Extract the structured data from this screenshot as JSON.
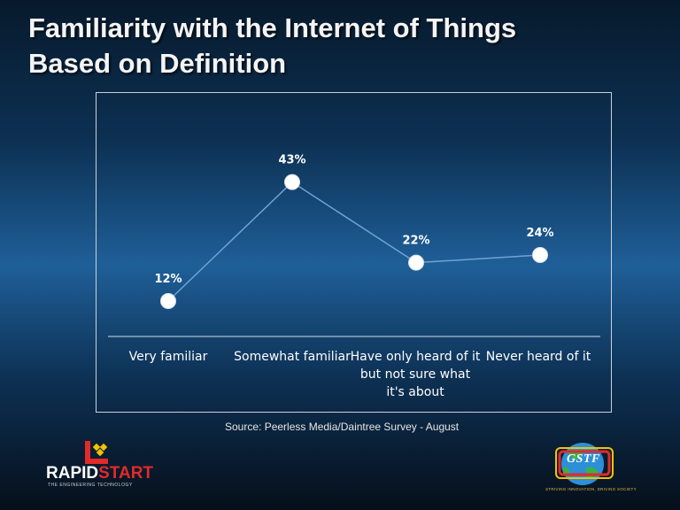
{
  "slide": {
    "title_line1": "Familiarity with the Internet of Things",
    "title_line2": "Based on Definition",
    "source": "Source: Peerless Media/Daintree Survey  - August"
  },
  "logos": {
    "rapidstart": {
      "word_main": "RAPID",
      "word_accent": "START",
      "tagline": "THE ENGINEERING TECHNOLOGY"
    },
    "gstf": {
      "word": "GSTF",
      "tagline": "STRIVING INNOVATION, DRIVING SOCIETY"
    }
  },
  "colors": {
    "line": "#6fa3d8",
    "marker": "#ffffff",
    "label": "#ffffff",
    "frame": "#c9d2dc",
    "accent_red": "#e22a2a"
  },
  "chart_data": {
    "type": "line",
    "title": "Familiarity with the Internet of Things Based on Definition",
    "categories": [
      "Very familiar",
      "Somewhat familiar",
      "Have only heard of it but not sure what it's about",
      "Never heard of it"
    ],
    "values": [
      12,
      43,
      22,
      24
    ],
    "data_labels": [
      "12%",
      "43%",
      "22%",
      "24%"
    ],
    "xlabel": "",
    "ylabel": "",
    "ylim": [
      0,
      60
    ],
    "grid": false,
    "legend": "none"
  }
}
